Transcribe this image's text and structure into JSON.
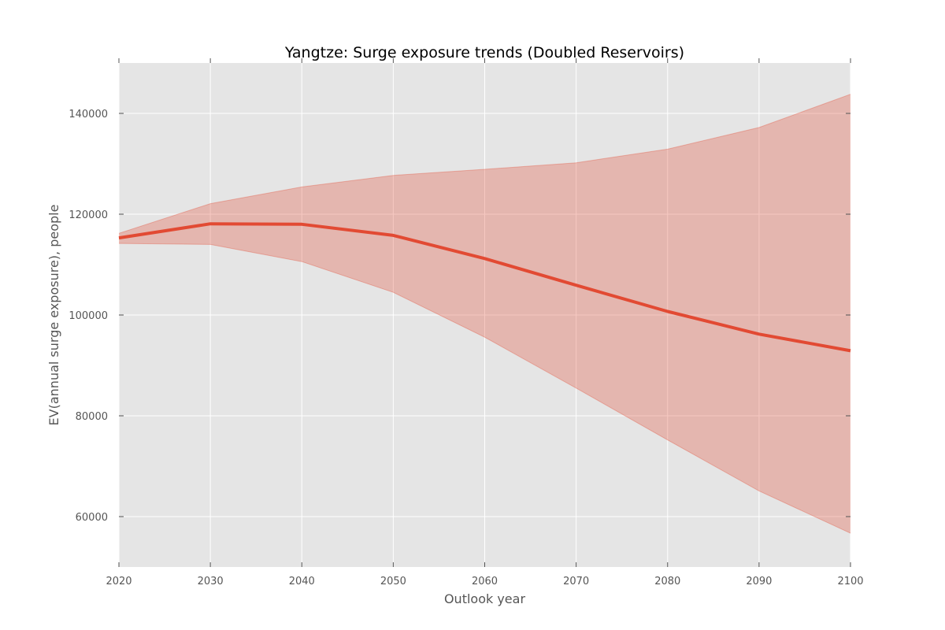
{
  "chart_data": {
    "type": "area",
    "title": "Yangtze: Surge exposure trends (Doubled Reservoirs)",
    "xlabel": "Outlook year",
    "ylabel": "EV(annual surge exposure), people",
    "xlim": [
      2020,
      2100
    ],
    "ylim": [
      50000,
      150000
    ],
    "x_ticks": [
      "2020",
      "2030",
      "2040",
      "2050",
      "2060",
      "2070",
      "2080",
      "2090",
      "2100"
    ],
    "y_ticks": [
      "60000",
      "80000",
      "100000",
      "120000",
      "140000"
    ],
    "grid": true,
    "x": [
      2020,
      2030,
      2040,
      2050,
      2060,
      2070,
      2080,
      2090,
      2100
    ],
    "series": [
      {
        "values": [
          115300,
          118100,
          118000,
          115800,
          111200,
          105900,
          100700,
          96200,
          92900
        ],
        "upper": [
          116200,
          122100,
          125400,
          127700,
          128900,
          130200,
          132900,
          137200,
          143800
        ],
        "lower": [
          114200,
          114000,
          110600,
          104500,
          95600,
          85500,
          75200,
          65100,
          56700
        ]
      }
    ],
    "colors": {
      "line": "#e24a33",
      "band": "#e24a33",
      "plot_background": "#e5e5e5",
      "grid": "#ffffff"
    }
  }
}
